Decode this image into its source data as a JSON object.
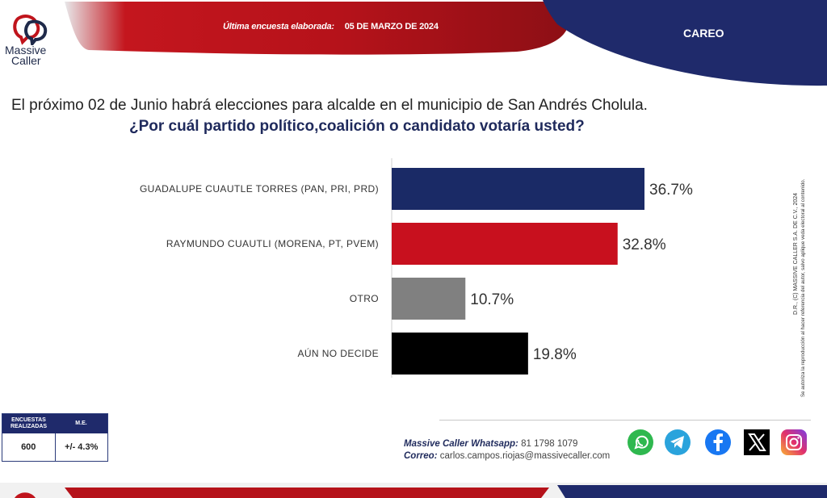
{
  "header": {
    "survey_label": "Última encuesta elaborada:",
    "survey_date": "05 DE MARZO DE 2024",
    "section": "CAREO",
    "colors": {
      "red": "#c0141c",
      "navy": "#1f2a6b"
    }
  },
  "logo": {
    "line1": "Massive",
    "line2": "Caller"
  },
  "question": {
    "line1": "El próximo 02 de Junio habrá elecciones para alcalde en el municipio de San Andrés Cholula.",
    "line2": "¿Por cuál partido político,coalición o candidato votaría usted?"
  },
  "chart_data": {
    "type": "bar",
    "orientation": "horizontal",
    "categories": [
      "GUADALUPE CUAUTLE TORRES (PAN, PRI, PRD)",
      "RAYMUNDO CUAUTLI (MORENA, PT, PVEM)",
      "OTRO",
      "AÚN NO DECIDE"
    ],
    "values": [
      36.7,
      32.8,
      10.7,
      19.8
    ],
    "value_labels": [
      "36.7%",
      "32.8%",
      "10.7%",
      "19.8%"
    ],
    "colors": [
      "#1a2a66",
      "#c8101e",
      "#808080",
      "#000000"
    ],
    "xlim": [
      0,
      50
    ],
    "grid": false
  },
  "side_note": {
    "line1": "D.R., (C) MASSIVE CALLER S.A. DE C.V., 2024",
    "line2": "Se autoriza la reproducción al hacer referencia del autor, salvo aplique veda electoral al contenido."
  },
  "sample_table": {
    "col1_header": "ENCUESTAS REALIZADAS",
    "col2_header": "M.E.",
    "col1_value": "600",
    "col2_value": "+/- 4.3%"
  },
  "contact": {
    "whatsapp_label": "Massive Caller Whatsapp:",
    "whatsapp_value": "81 1798 1079",
    "email_label": "Correo:",
    "email_value": "carlos.campos.riojas@massivecaller.com"
  },
  "social_icons": [
    "whatsapp-icon",
    "telegram-icon",
    "facebook-icon",
    "x-icon",
    "instagram-icon"
  ]
}
